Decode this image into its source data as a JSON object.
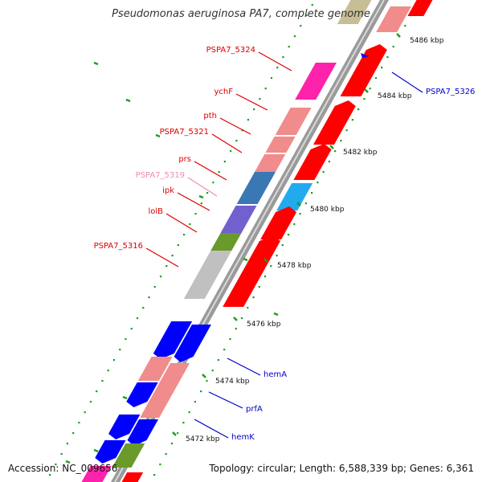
{
  "title": "Pseudomonas aeruginosa PA7, complete genome",
  "accession_text": "Accession: NC_009656",
  "topology_text": "Topology: circular; Length: 6,588,339 bp; Genes: 6,361",
  "colors": {
    "forward_red": "#ff0000",
    "forward_pink": "#f08c8c",
    "reverse_blue": "#0000ff",
    "magenta": "#ff22aa",
    "steel_blue": "#3a78b4",
    "cyan": "#22aaee",
    "violet": "#7060d0",
    "olive": "#6a9a2a",
    "grey": "#c0c0c0",
    "tan": "#c8be96",
    "backbone": "#9a9a9a",
    "tick": "#1b9e1b"
  },
  "kbp_ticks": [
    {
      "label": "5486 kbp"
    },
    {
      "label": "5484 kbp"
    },
    {
      "label": "5482 kbp"
    },
    {
      "label": "5480 kbp"
    },
    {
      "label": "5478 kbp"
    },
    {
      "label": "5476 kbp"
    },
    {
      "label": "5474 kbp"
    },
    {
      "label": "5472 kbp"
    }
  ],
  "gene_labels": [
    {
      "name": "PSPA7_5324",
      "color": "#dd0000"
    },
    {
      "name": "ychF",
      "color": "#dd0000"
    },
    {
      "name": "pth",
      "color": "#dd0000"
    },
    {
      "name": "PSPA7_5321",
      "color": "#dd0000"
    },
    {
      "name": "prs",
      "color": "#dd0000"
    },
    {
      "name": "PSPA7_5319",
      "color": "#f08cb4"
    },
    {
      "name": "ipk",
      "color": "#dd0000"
    },
    {
      "name": "lolB",
      "color": "#dd0000"
    },
    {
      "name": "PSPA7_5316",
      "color": "#dd0000"
    },
    {
      "name": "PSPA7_5326",
      "color": "#0000cc"
    },
    {
      "name": "hemA",
      "color": "#0000cc"
    },
    {
      "name": "prfA",
      "color": "#0000cc"
    },
    {
      "name": "hemK",
      "color": "#0000cc"
    }
  ]
}
